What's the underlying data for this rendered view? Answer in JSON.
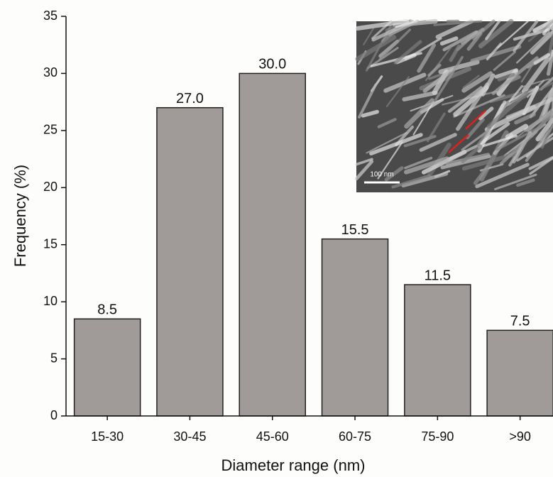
{
  "chart_data": {
    "type": "bar",
    "categories": [
      "15-30",
      "30-45",
      "45-60",
      "60-75",
      "75-90",
      ">90"
    ],
    "values": [
      8.5,
      27,
      30,
      15.5,
      11.5,
      7.5
    ],
    "value_labels": [
      "8.5",
      "27.0",
      "30.0",
      "15.5",
      "11.5",
      "7.5"
    ],
    "color": "#a09a99",
    "ylim": [
      0,
      35
    ],
    "yticks": [
      0,
      5,
      10,
      15,
      20,
      25,
      30,
      35
    ],
    "x_label": "Diameter range (nm)",
    "y_label": "Frequency (%)",
    "inset_scale_label": "100 nm"
  }
}
